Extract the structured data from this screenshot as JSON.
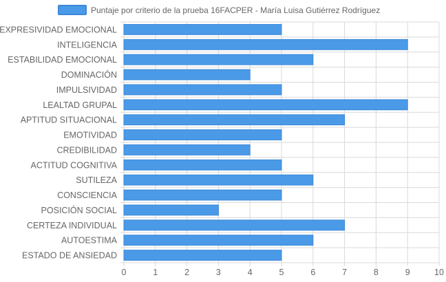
{
  "chart_data": {
    "type": "bar",
    "orientation": "horizontal",
    "legend": {
      "label": "Puntaje por criterio de la prueba 16FACPER - María Luisa Gutiérrez Rodríguez",
      "placement": "top-center"
    },
    "categories": [
      "EXPRESIVIDAD EMOCIONAL",
      "INTELIGENCIA",
      "ESTABILIDAD EMOCIONAL",
      "DOMINACIÓN",
      "IMPULSIVIDAD",
      "LEALTAD GRUPAL",
      "APTITUD SITUACIONAL",
      "EMOTIVIDAD",
      "CREDIBILIDAD",
      "ACTITUD COGNITIVA",
      "SUTILEZA",
      "CONSCIENCIA",
      "POSICIÓN SOCIAL",
      "CERTEZA INDIVIDUAL",
      "AUTOESTIMA",
      "ESTADO DE ANSIEDAD"
    ],
    "series": [
      {
        "name": "Puntaje por criterio de la prueba 16FACPER - María Luisa Gutiérrez Rodríguez",
        "values": [
          5,
          9,
          6,
          4,
          5,
          9,
          7,
          5,
          4,
          5,
          6,
          5,
          3,
          7,
          6,
          5
        ]
      }
    ],
    "xlim": [
      0,
      10
    ],
    "x_ticks": [
      "0",
      "1",
      "2",
      "3",
      "4",
      "5",
      "6",
      "7",
      "8",
      "9",
      "10"
    ],
    "grid": true,
    "colors": {
      "bar_fill": "#4a9ae8",
      "bar_border": "#3b88d9",
      "grid": "#d9d9d9",
      "text": "#666666"
    }
  }
}
